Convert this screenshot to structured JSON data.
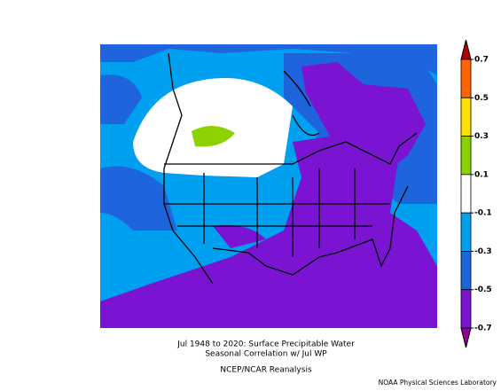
{
  "title": "Jul 1948 to 2020: Surface Precipitable Water",
  "subtitle": "Seasonal Correlation w/ Jul WP",
  "source": "NCEP/NCAR Reanalysis",
  "credit": "NOAA Physical Sciences Laboratory",
  "colorbar": {
    "ticks": [
      0.7,
      0.5,
      0.3,
      0.1,
      -0.1,
      -0.3,
      -0.5,
      -0.7
    ],
    "colors": [
      "#b40000",
      "#ff6400",
      "#ffe100",
      "#8cd200",
      "#ffffff",
      "#00a0f0",
      "#1e64dc",
      "#7a14d2",
      "#960096"
    ]
  }
}
